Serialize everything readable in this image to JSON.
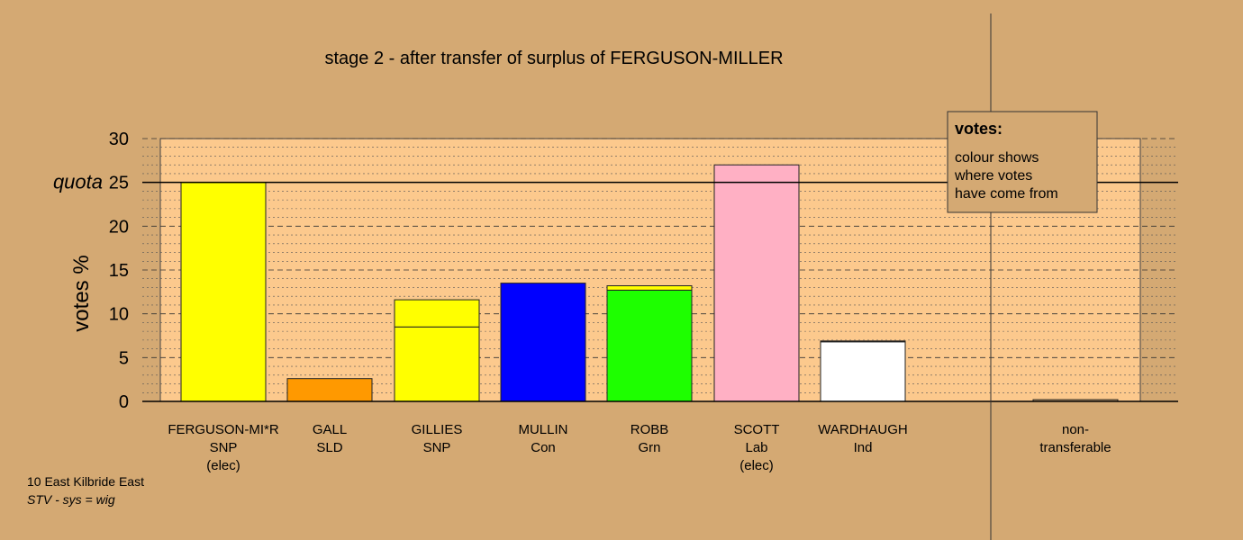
{
  "chart_data": {
    "type": "bar",
    "title": "stage 2 - after transfer of surplus of FERGUSON-MILLER",
    "ylabel": "votes %",
    "ylim": [
      0,
      30
    ],
    "yticks": [
      0,
      5,
      10,
      15,
      20,
      25,
      30
    ],
    "quota": {
      "label": "quota",
      "value": 25
    },
    "categories": [
      {
        "lines": [
          "FERGUSON-MI*R",
          "SNP",
          "(elec)"
        ],
        "segments": [
          {
            "value": 25,
            "color": "#ffff00"
          }
        ]
      },
      {
        "lines": [
          "GALL",
          "SLD"
        ],
        "segments": [
          {
            "value": 2.6,
            "color": "#ff9900"
          }
        ]
      },
      {
        "lines": [
          "GILLIES",
          "SNP"
        ],
        "segments": [
          {
            "value": 8.5,
            "color": "#ffff00"
          },
          {
            "value": 3.1,
            "color": "#ffff00"
          }
        ]
      },
      {
        "lines": [
          "MULLIN",
          "Con"
        ],
        "segments": [
          {
            "value": 13.5,
            "color": "#0000ff"
          }
        ]
      },
      {
        "lines": [
          "ROBB",
          "Grn"
        ],
        "segments": [
          {
            "value": 12.7,
            "color": "#1eff00"
          },
          {
            "value": 0.5,
            "color": "#ffff00"
          }
        ]
      },
      {
        "lines": [
          "SCOTT",
          "Lab",
          "(elec)"
        ],
        "segments": [
          {
            "value": 27.0,
            "color": "#ffb0c4"
          }
        ]
      },
      {
        "lines": [
          "WARDHAUGH",
          "Ind"
        ],
        "segments": [
          {
            "value": 6.8,
            "color": "#ffffff"
          },
          {
            "value": 0.1,
            "color": "#ffff00"
          }
        ]
      }
    ],
    "nontransferable": {
      "lines": [
        "non-",
        "transferable"
      ],
      "value": 0.2,
      "color": "#d4a973"
    },
    "legend": {
      "position": "top-right",
      "title": "votes:",
      "lines": [
        "colour shows",
        "where votes",
        "have come from"
      ]
    },
    "colors": {
      "background": "#d4a973",
      "plot_area": "#fcc98d"
    }
  },
  "footer": {
    "line1": "10 East Kilbride East",
    "line2": "STV - sys = wig"
  }
}
